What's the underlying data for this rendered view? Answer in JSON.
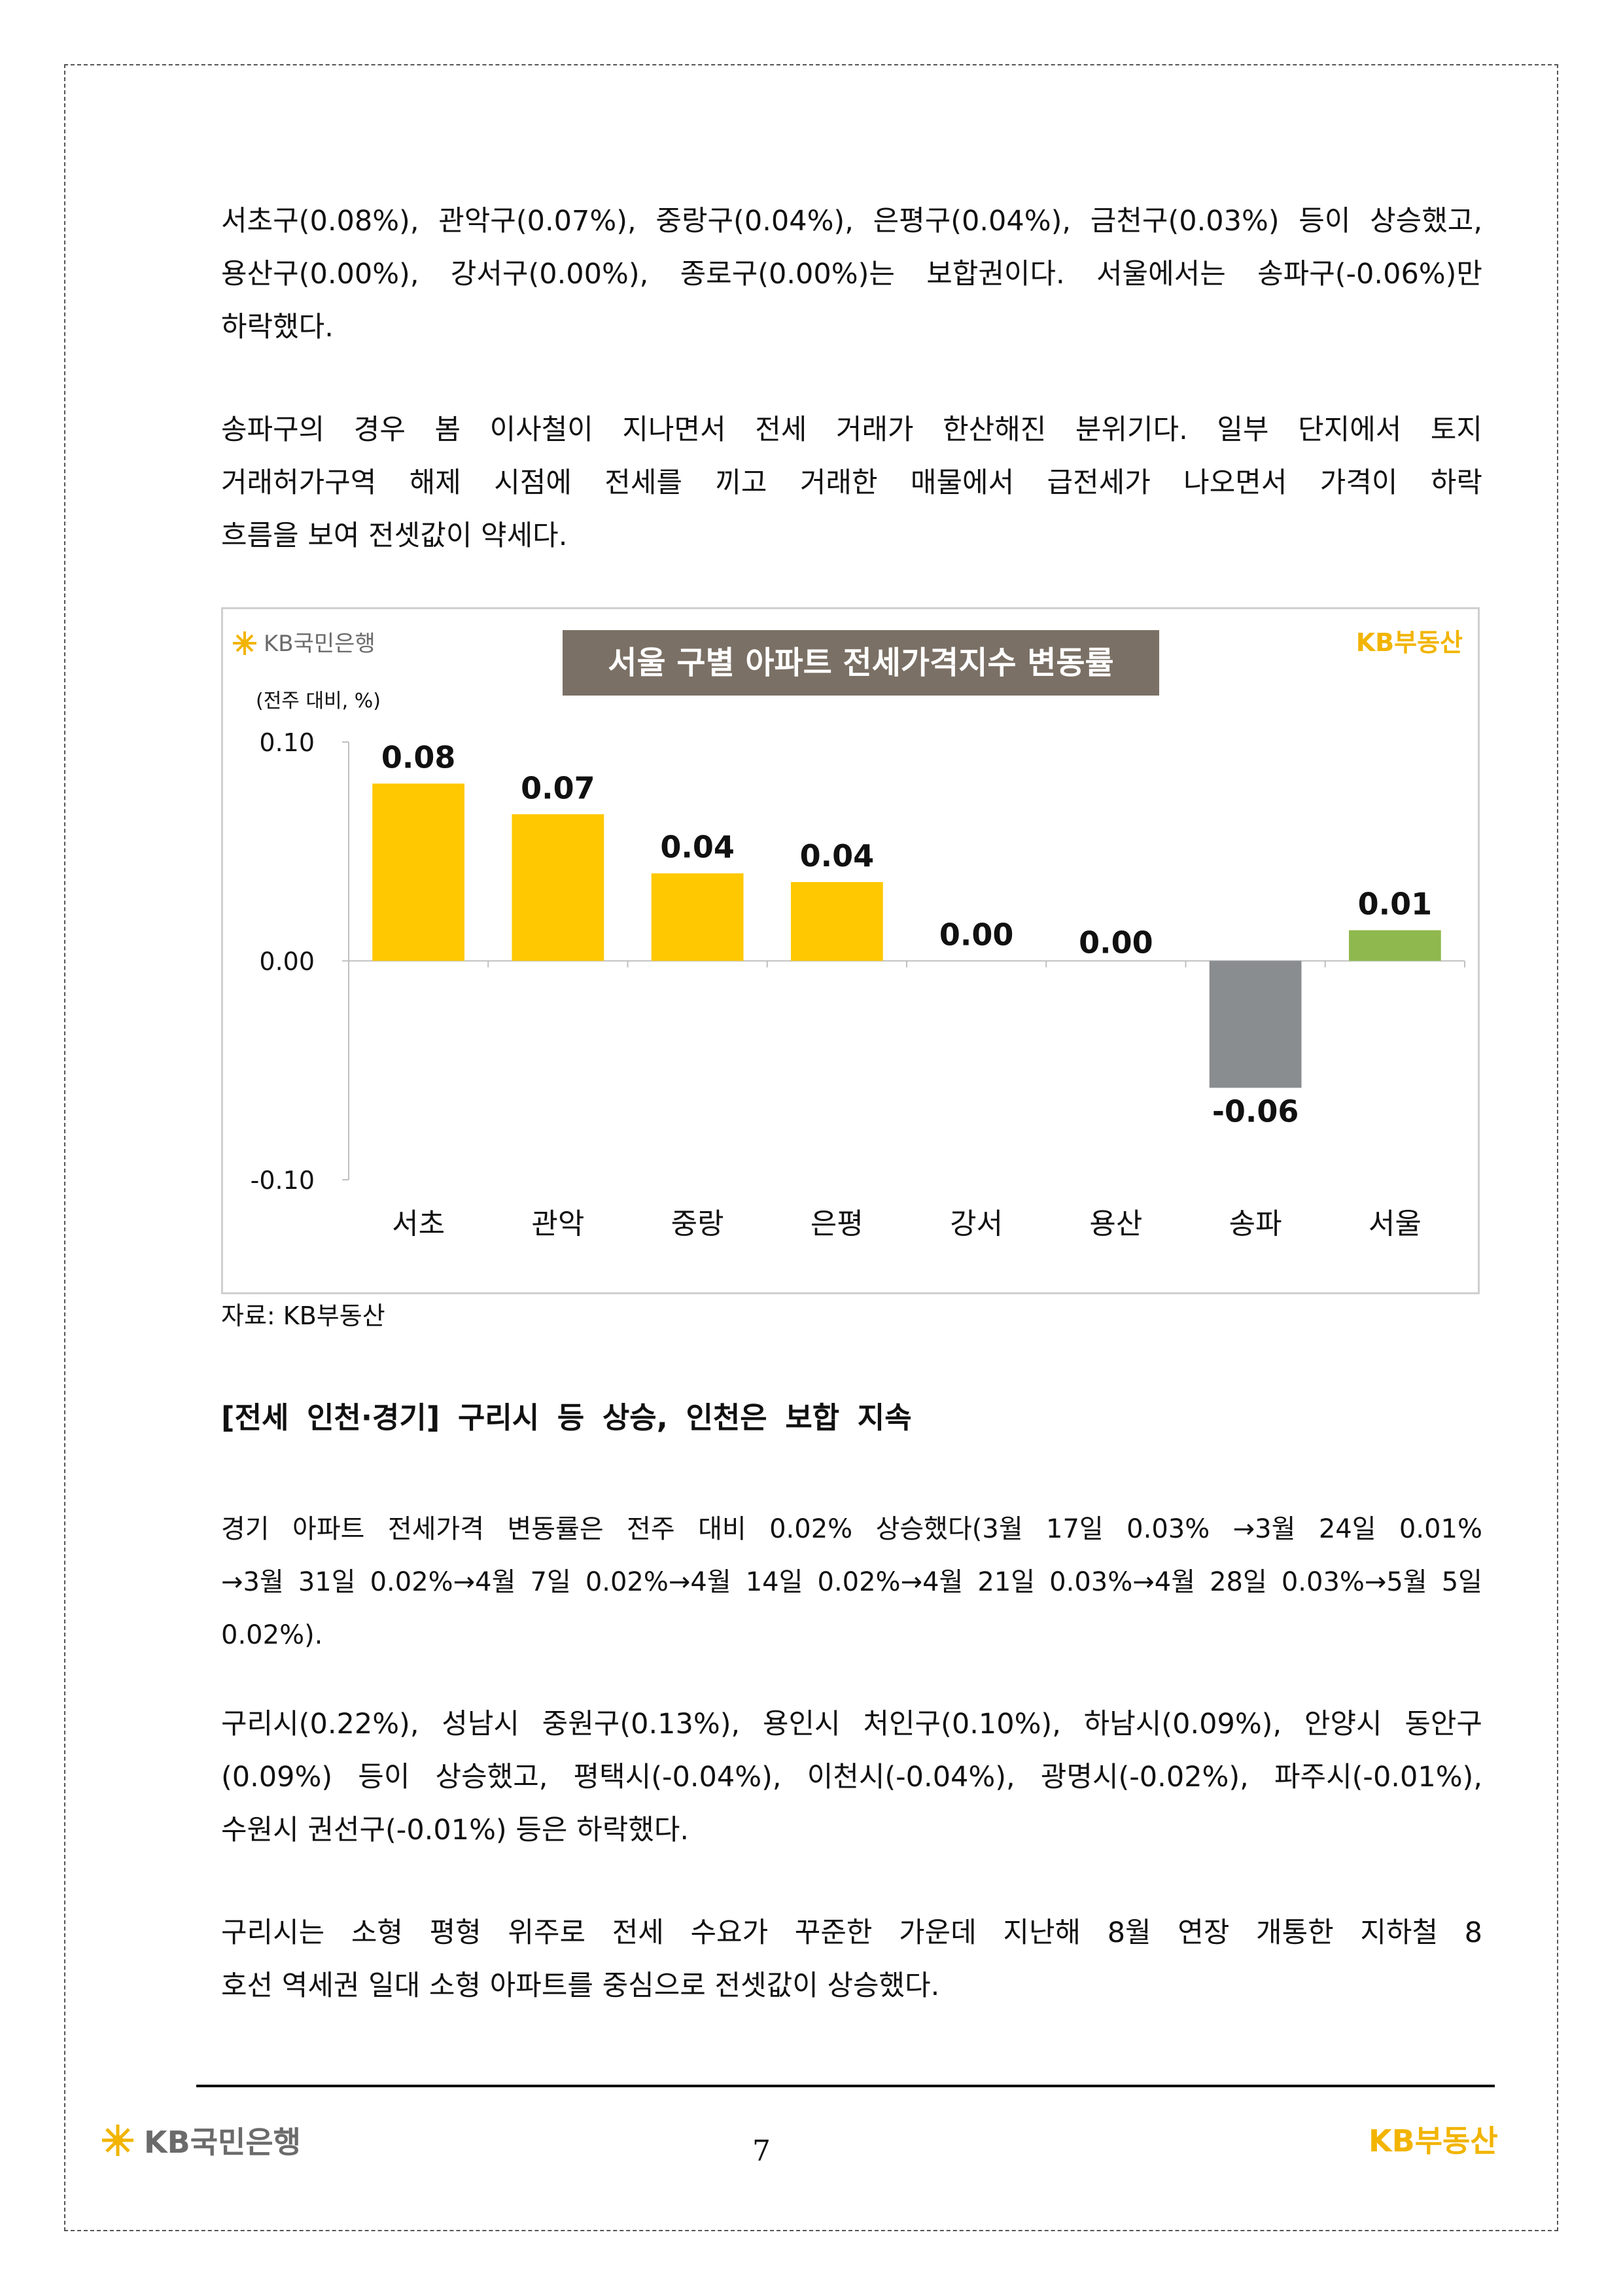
{
  "paragraphs": {
    "p1": [
      "서초구(0.08%), 관악구(0.07%), 중랑구(0.04%), 은평구(0.04%), 금천구(0.03%) 등이 상승했고,",
      "용산구(0.00%), 강서구(0.00%), 종로구(0.00%)는 보합권이다. 서울에서는 송파구(-0.06%)만",
      "하락했다."
    ],
    "p2": [
      "송파구의 경우 봄 이사철이 지나면서 전세 거래가 한산해진 분위기다. 일부 단지에서 토지",
      "거래허가구역 해제 시점에 전세를 끼고 거래한 매물에서 급전세가 나오면서 가격이 하락",
      "흐름을 보여 전셋값이 약세다."
    ],
    "p3": [
      "경기 아파트 전세가격 변동률은 전주 대비 0.02% 상승했다(3월 17일 0.03% →3월 24일 0.01%",
      "→3월 31일 0.02%→4월 7일 0.02%→4월 14일 0.02%→4월 21일 0.03%→4월 28일 0.03%→5월 5일",
      "0.02%)."
    ],
    "p4": [
      "구리시(0.22%), 성남시 중원구(0.13%), 용인시 처인구(0.10%), 하남시(0.09%), 안양시 동안구",
      "(0.09%) 등이 상승했고, 평택시(-0.04%), 이천시(-0.04%), 광명시(-0.02%), 파주시(-0.01%),",
      "수원시 권선구(-0.01%) 등은 하락했다."
    ],
    "p5": [
      "구리시는 소형 평형 위주로 전세 수요가 꾸준한 가운데 지난해 8월 연장 개통한 지하철 8",
      "호선 역세권 일대 소형 아파트를 중심으로 전셋값이 상승했다."
    ]
  },
  "section_heading": "[전세 인천·경기] 구리시 등 상승, 인천은 보합 지속",
  "source_note": "자료: KB부동산",
  "chart_logo_left": "KB국민은행",
  "chart_logo_right": "KB부동산",
  "footer": {
    "page_number": "7",
    "logo_left": "KB국민은행",
    "logo_right": "KB부동산"
  },
  "colors": {
    "rise": "#ffc800",
    "fall": "#8a8d8f",
    "seoul": "#8fb84e",
    "title_bg": "#7a7065",
    "kb_yellow": "#f2b400",
    "kb_gray": "#6b6b6b"
  },
  "chart_data": {
    "type": "bar",
    "title": "서울 구별 아파트 전세가격지수 변동률",
    "ylabel": "(전주 대비, %)",
    "categories": [
      "서초",
      "관악",
      "중랑",
      "은평",
      "강서",
      "용산",
      "송파",
      "서울"
    ],
    "values": [
      0.08,
      0.07,
      0.04,
      0.04,
      0.0,
      0.0,
      -0.06,
      0.01
    ],
    "data_labels": [
      "0.08",
      "0.07",
      "0.04",
      "0.04",
      "0.00",
      "0.00",
      "-0.06",
      "0.01"
    ],
    "plotted_values": [
      0.081,
      0.067,
      0.04,
      0.036,
      0.0,
      0.0,
      -0.058,
      0.014
    ],
    "ylim": [
      -0.1,
      0.1
    ],
    "yticks": [
      "0.10",
      "0.00",
      "-0.10"
    ],
    "grid": false,
    "bar_colors": [
      "rise",
      "rise",
      "rise",
      "rise",
      "rise",
      "rise",
      "fall",
      "seoul"
    ]
  }
}
